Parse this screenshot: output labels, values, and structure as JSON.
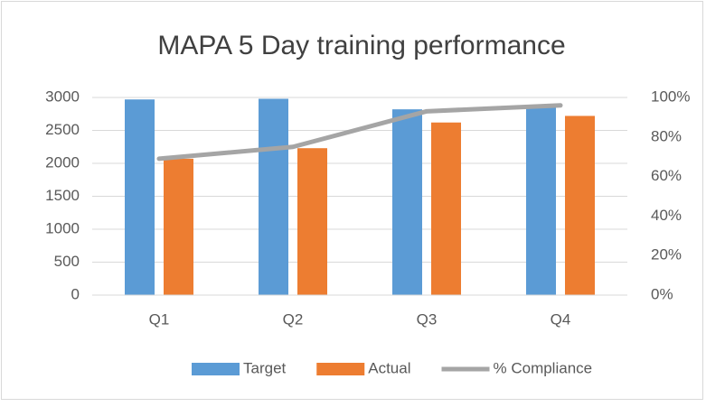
{
  "chart_data": {
    "type": "bar",
    "title": "MAPA 5 Day training performance",
    "categories": [
      "Q1",
      "Q2",
      "Q3",
      "Q4"
    ],
    "series": [
      {
        "name": "Target",
        "color": "#5b9bd5",
        "values": [
          2970,
          2980,
          2820,
          2850
        ]
      },
      {
        "name": "Actual",
        "color": "#ed7d31",
        "values": [
          2070,
          2230,
          2620,
          2720
        ]
      },
      {
        "name": "% Compliance",
        "color": "#a5a5a5",
        "type": "line",
        "axis": "y2",
        "values": [
          69,
          75,
          93,
          96
        ]
      }
    ],
    "ylim": [
      0,
      3000
    ],
    "yticks": [
      0,
      500,
      1000,
      1500,
      2000,
      2500,
      3000
    ],
    "y2lim": [
      0,
      100
    ],
    "y2ticks": [
      {
        "value": 0,
        "label": "0%"
      },
      {
        "value": 20,
        "label": "20%"
      },
      {
        "value": 40,
        "label": "40%"
      },
      {
        "value": 60,
        "label": "60%"
      },
      {
        "value": 80,
        "label": "80%"
      },
      {
        "value": 100,
        "label": "100%"
      }
    ],
    "grid": true,
    "legend": "bottom"
  }
}
